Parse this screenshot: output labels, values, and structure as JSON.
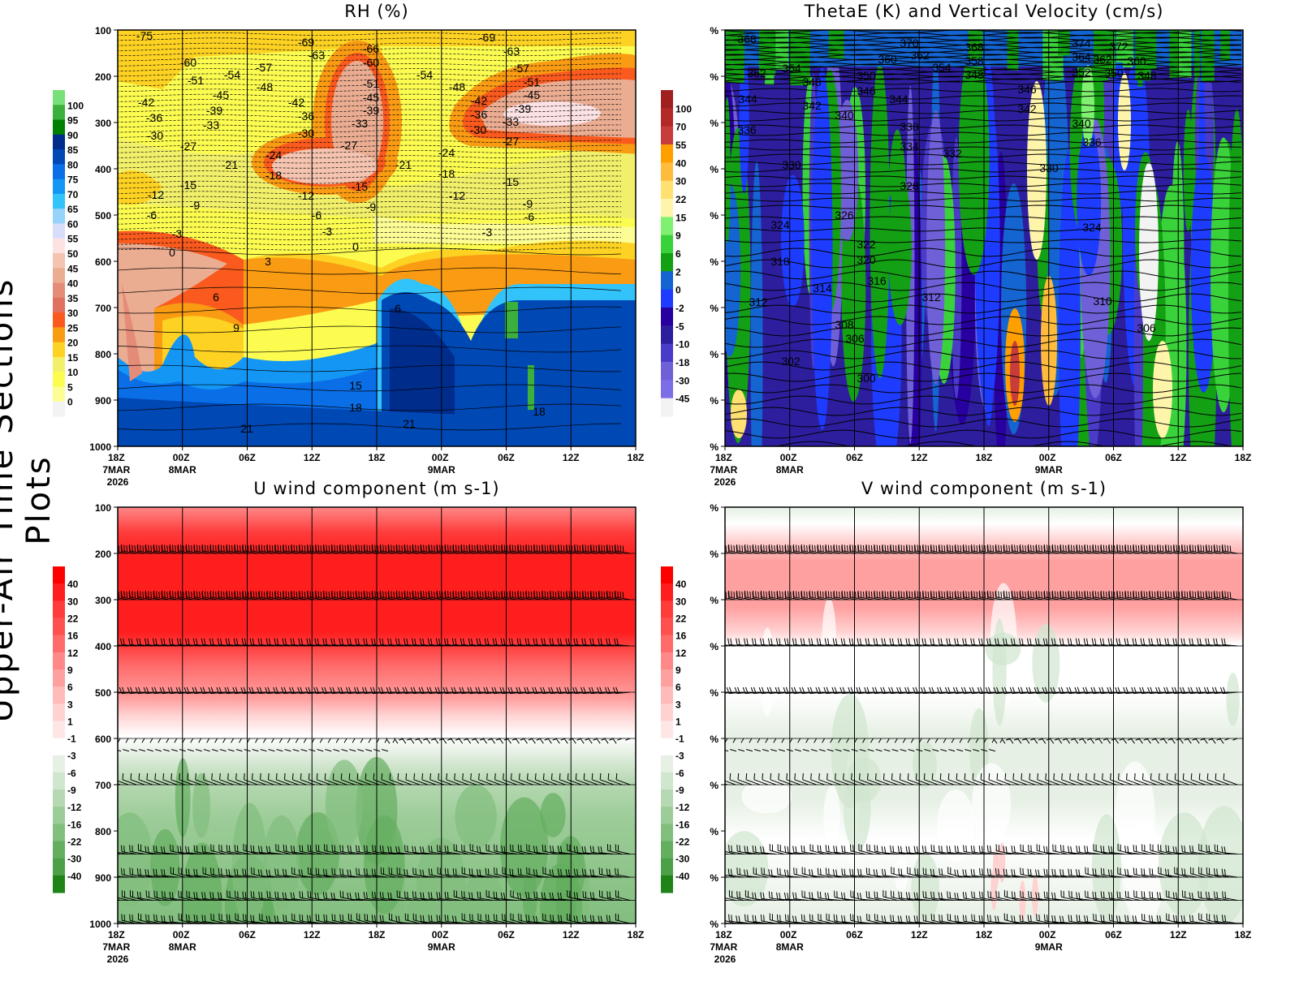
{
  "side_label": "Upper-Air Time Sections Plots",
  "time_ticks": [
    "18Z",
    "00Z",
    "06Z",
    "12Z",
    "18Z",
    "00Z",
    "06Z",
    "12Z",
    "18Z"
  ],
  "date_labels": [
    {
      "tick": 0,
      "lines": [
        "7MAR",
        "2026"
      ]
    },
    {
      "tick": 1,
      "lines": [
        "8MAR"
      ]
    },
    {
      "tick": 5,
      "lines": [
        "9MAR"
      ]
    }
  ],
  "pressure_ticks": [
    "100",
    "200",
    "300",
    "400",
    "500",
    "600",
    "700",
    "800",
    "900",
    "1000"
  ],
  "right_axis_tick": "%",
  "chart_data": [
    {
      "type": "heatmap",
      "title": "RH (%)",
      "x_ticks": [
        "18Z 7MAR 2026",
        "00Z 8MAR",
        "06Z",
        "12Z",
        "18Z",
        "00Z 9MAR",
        "06Z",
        "12Z",
        "18Z"
      ],
      "y_ticks": [
        100,
        200,
        300,
        400,
        500,
        600,
        700,
        800,
        900,
        1000
      ],
      "ylim": [
        1000,
        100
      ],
      "colorbar": {
        "labels": [
          "100",
          "95",
          "90",
          "85",
          "80",
          "75",
          "70",
          "65",
          "60",
          "55",
          "50",
          "45",
          "40",
          "35",
          "30",
          "25",
          "20",
          "15",
          "10",
          "5",
          "0"
        ],
        "colors": [
          "#78e078",
          "#3cb03c",
          "#008000",
          "#002c8c",
          "#0048b4",
          "#0a6ee6",
          "#1496f5",
          "#32c3fa",
          "#96d2fa",
          "#d8defa",
          "#fde2e4",
          "#f5c4b0",
          "#ebad92",
          "#e58c78",
          "#e07060",
          "#fa5a1e",
          "#fa9b14",
          "#fdd223",
          "#f2f06a",
          "#fcfc50",
          "#fdfd96",
          "#f3f3f3"
        ]
      },
      "contour_labels": [
        "-75",
        "-69",
        "-66",
        "-69",
        "-60",
        "-63",
        "-60",
        "-63",
        "-57",
        "-57",
        "-54",
        "-54",
        "-51",
        "-51",
        "-51",
        "-48",
        "-48",
        "-45",
        "-45",
        "-45",
        "-42",
        "-42",
        "-42",
        "-39",
        "-39",
        "-39",
        "-36",
        "-36",
        "-36",
        "-33",
        "-33",
        "-33",
        "-30",
        "-30",
        "-30",
        "-27",
        "-27",
        "-27",
        "-24",
        "-24",
        "-21",
        "-21",
        "-18",
        "-18",
        "-15",
        "-15",
        "-15",
        "-12",
        "-12",
        "-12",
        "-9",
        "-9",
        "-9",
        "-6",
        "-6",
        "-6",
        "-3",
        "-3",
        "-3",
        "0",
        "0",
        "3",
        "6",
        "6",
        "9",
        "15",
        "18",
        "18",
        "21",
        "21"
      ]
    },
    {
      "type": "heatmap",
      "title": "ThetaE (K) and Vertical Velocity (cm/s)",
      "x_ticks": [
        "18Z 7MAR 2026",
        "00Z 8MAR",
        "06Z",
        "12Z",
        "18Z",
        "00Z 9MAR",
        "06Z",
        "12Z",
        "18Z"
      ],
      "ylim": [
        1000,
        100
      ],
      "colorbar": {
        "labels": [
          "100",
          "70",
          "55",
          "40",
          "30",
          "22",
          "15",
          "9",
          "6",
          "2",
          "0",
          "-2",
          "-5",
          "-10",
          "-18",
          "-30",
          "-45"
        ],
        "colors": [
          "#a02020",
          "#b42828",
          "#c83c3c",
          "#ff9f00",
          "#ffbb3c",
          "#ffe070",
          "#fff5aa",
          "#80f070",
          "#3ad23a",
          "#14a014",
          "#1464d2",
          "#1e3cff",
          "#2800a0",
          "#2d1e9e",
          "#4b3cc8",
          "#7060d8",
          "#7c6ee6",
          "#f3f3f3"
        ]
      },
      "contour_labels": [
        "368",
        "370",
        "368",
        "374",
        "372",
        "360",
        "362",
        "354",
        "358",
        "364",
        "362",
        "360",
        "352",
        "354",
        "348",
        "350",
        "348",
        "352",
        "350",
        "348",
        "346",
        "344",
        "346",
        "344",
        "342",
        "342",
        "340",
        "340",
        "338",
        "336",
        "336",
        "334",
        "332",
        "330",
        "330",
        "328",
        "326",
        "324",
        "324",
        "322",
        "320",
        "318",
        "316",
        "314",
        "312",
        "312",
        "310",
        "308",
        "306",
        "306",
        "302",
        "300"
      ]
    },
    {
      "type": "heatmap",
      "title": "U wind component (m s-1)",
      "x_ticks": [
        "18Z 7MAR 2026",
        "00Z 8MAR",
        "06Z",
        "12Z",
        "18Z",
        "00Z 9MAR",
        "06Z",
        "12Z",
        "18Z"
      ],
      "y_ticks": [
        100,
        200,
        300,
        400,
        500,
        600,
        700,
        800,
        900,
        1000
      ],
      "ylim": [
        1000,
        100
      ],
      "colorbar": {
        "labels": [
          "40",
          "30",
          "22",
          "16",
          "12",
          "9",
          "6",
          "3",
          "1",
          "-1",
          "-3",
          "-6",
          "-9",
          "-12",
          "-16",
          "-22",
          "-30",
          "-40"
        ],
        "colors": [
          "#ff0000",
          "#ff1e1e",
          "#ff3c3c",
          "#ff5050",
          "#ff6a6a",
          "#ff8888",
          "#ffa0a0",
          "#ffbaba",
          "#ffd2d2",
          "#ffe6e6",
          "#ffffff",
          "#e6f0e4",
          "#d0e6ce",
          "#b6d8b2",
          "#9ccc98",
          "#82be7e",
          "#64ae60",
          "#4ca048",
          "#1e8418"
        ]
      },
      "wind_barb_levels": [
        200,
        300,
        400,
        500,
        600,
        700,
        850,
        900,
        950,
        1000
      ]
    },
    {
      "type": "heatmap",
      "title": "V wind component (m s-1)",
      "x_ticks": [
        "18Z 7MAR 2026",
        "00Z 8MAR",
        "06Z",
        "12Z",
        "18Z",
        "00Z 9MAR",
        "06Z",
        "12Z",
        "18Z"
      ],
      "ylim": [
        1000,
        100
      ],
      "colorbar": {
        "labels": [
          "40",
          "30",
          "22",
          "16",
          "12",
          "9",
          "6",
          "3",
          "1",
          "-1",
          "-3",
          "-6",
          "-9",
          "-12",
          "-16",
          "-22",
          "-30",
          "-40"
        ],
        "colors": [
          "#ff0000",
          "#ff1e1e",
          "#ff3c3c",
          "#ff5050",
          "#ff6a6a",
          "#ff8888",
          "#ffa0a0",
          "#ffbaba",
          "#ffd2d2",
          "#ffe6e6",
          "#ffffff",
          "#e6f0e4",
          "#d0e6ce",
          "#b6d8b2",
          "#9ccc98",
          "#82be7e",
          "#64ae60",
          "#4ca048",
          "#1e8418"
        ]
      },
      "wind_barb_levels": [
        200,
        300,
        400,
        500,
        600,
        700,
        850,
        900,
        950,
        1000
      ]
    }
  ]
}
